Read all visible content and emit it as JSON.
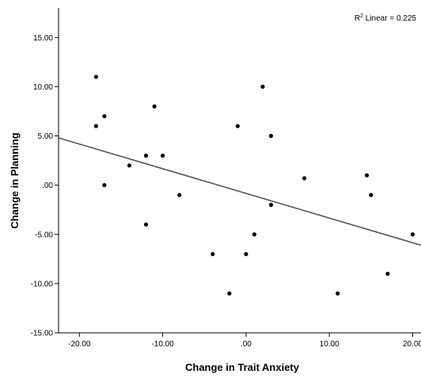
{
  "chart_data": {
    "type": "scatter",
    "xlabel": "Change in Trait Anxiety",
    "ylabel": "Change in Planning",
    "xlim": [
      -22.5,
      21
    ],
    "ylim": [
      -15,
      18
    ],
    "x_ticks": [
      -20,
      -10,
      0,
      10,
      20
    ],
    "x_tick_labels": [
      "-20.00",
      "-10.00",
      ".00",
      "10.00",
      "20.00"
    ],
    "y_ticks": [
      15,
      10,
      5,
      0,
      -5,
      -10,
      -15
    ],
    "y_tick_labels": [
      "15.00",
      "10.00",
      "5.00",
      ".00",
      "-5.00",
      "-10.00",
      "-15.00"
    ],
    "grid": false,
    "point_color": "#000000",
    "line_color": "#555555",
    "points": [
      {
        "x": -18,
        "y": 11
      },
      {
        "x": -18,
        "y": 6
      },
      {
        "x": -17,
        "y": 7
      },
      {
        "x": -17,
        "y": 0
      },
      {
        "x": -14,
        "y": 2
      },
      {
        "x": -12,
        "y": 3
      },
      {
        "x": -11,
        "y": 8
      },
      {
        "x": -12,
        "y": -4
      },
      {
        "x": -10,
        "y": 3
      },
      {
        "x": -8,
        "y": -1
      },
      {
        "x": -4,
        "y": -7
      },
      {
        "x": -2,
        "y": -11
      },
      {
        "x": -1,
        "y": 6
      },
      {
        "x": 0,
        "y": -7
      },
      {
        "x": 1,
        "y": -5
      },
      {
        "x": 2,
        "y": 10
      },
      {
        "x": 3,
        "y": 5
      },
      {
        "x": 3,
        "y": -2
      },
      {
        "x": 7,
        "y": 0.7
      },
      {
        "x": 11,
        "y": -11
      },
      {
        "x": 14.5,
        "y": 1
      },
      {
        "x": 15,
        "y": -1
      },
      {
        "x": 17,
        "y": -9
      },
      {
        "x": 20,
        "y": -5
      }
    ],
    "fit_line": {
      "label_prefix": "R",
      "label_sup": "2",
      "label_suffix": " Linear = 0.225",
      "x0": -22.5,
      "y0": 4.8,
      "x1": 21,
      "y1": -6.1
    }
  }
}
